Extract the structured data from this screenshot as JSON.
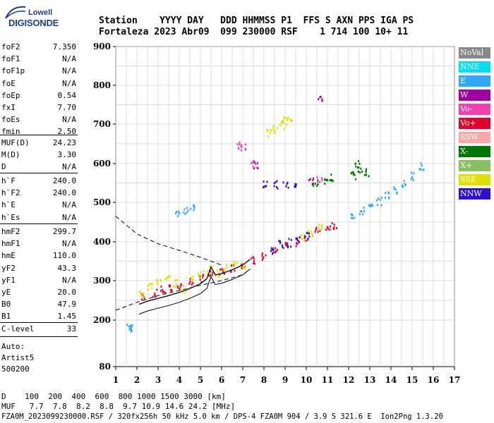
{
  "logo": {
    "line1": "Lowell",
    "line2": "DIGISONDE"
  },
  "header": {
    "row1": "Station    YYYY DAY   DDD HHMMSS P1  FFS S AXN PPS IGA PS",
    "row2": "Fortaleza 2023 Abr09  099 230000 RSF    1 714 100 10+ 11"
  },
  "params": {
    "group1": [
      [
        "foF2",
        "7.350"
      ],
      [
        "foF1",
        "N/A"
      ],
      [
        "foF1p",
        "N/A"
      ],
      [
        "foE",
        "N/A"
      ],
      [
        "foEp",
        "0.54"
      ],
      [
        "fxI",
        "7.70"
      ],
      [
        "foEs",
        "N/A"
      ],
      [
        "fmin",
        "2.50"
      ]
    ],
    "group2": [
      [
        "MUF(D)",
        "24.23"
      ],
      [
        "M(D)",
        "3.30"
      ],
      [
        "D",
        "N/A"
      ]
    ],
    "group3": [
      [
        "h`F",
        "240.0"
      ],
      [
        "h`F2",
        "240.0"
      ],
      [
        "h`E",
        "N/A"
      ],
      [
        "h`Es",
        "N/A"
      ]
    ],
    "group4": [
      [
        "hmF2",
        "299.7"
      ],
      [
        "hmF1",
        "N/A"
      ],
      [
        "hmE",
        "110.0"
      ],
      [
        "yF2",
        "43.3"
      ],
      [
        "yF1",
        "N/A"
      ],
      [
        "yE",
        "20.0"
      ],
      [
        "B0",
        "47.9"
      ],
      [
        "B1",
        "1.45"
      ]
    ],
    "clevel": [
      "C-level",
      "33"
    ]
  },
  "autoscale": {
    "line1": "Auto:",
    "line2": "Artist5",
    "line3": "500200"
  },
  "legend": [
    {
      "label": "NoVal",
      "color": "#888888"
    },
    {
      "label": "NNE",
      "color": "#00e0f0"
    },
    {
      "label": "E",
      "color": "#30a8f8"
    },
    {
      "label": "W",
      "color": "#a000a0"
    },
    {
      "label": "Vo-",
      "color": "#f040b0"
    },
    {
      "label": "Vo+",
      "color": "#e00030"
    },
    {
      "label": "SSW",
      "color": "#f8a8a8"
    },
    {
      "label": "X-",
      "color": "#007800"
    },
    {
      "label": "X+",
      "color": "#88c060"
    },
    {
      "label": "SSE",
      "color": "#e0e000"
    },
    {
      "label": "NNW",
      "color": "#3010d0"
    }
  ],
  "chart_data": {
    "type": "scatter",
    "x_ticks": [
      "1",
      "2",
      "3",
      "4",
      "5",
      "6",
      "7",
      "8",
      "9",
      "10",
      "11",
      "12",
      "13",
      "14",
      "15",
      "16",
      "17"
    ],
    "y_ticks": [
      "80",
      "200",
      "300",
      "400",
      "500",
      "600",
      "700",
      "800",
      "900"
    ],
    "xlim": [
      1,
      17
    ],
    "ylim": [
      80,
      900
    ],
    "grid": true,
    "legend_position": "right",
    "profile_x": [
      2.1,
      2.5,
      3.0,
      3.5,
      4.0,
      4.5,
      5.0,
      5.3,
      5.5,
      5.7,
      6.0,
      6.5,
      7.0,
      7.35
    ],
    "profile_y": [
      240,
      248,
      255,
      262,
      270,
      280,
      292,
      305,
      335,
      315,
      318,
      328,
      340,
      355
    ],
    "echoes": [
      {
        "mode": "Vo+",
        "points": [
          [
            2.3,
            260
          ],
          [
            2.8,
            270
          ],
          [
            3.2,
            278
          ],
          [
            3.6,
            282
          ],
          [
            4.0,
            290
          ],
          [
            4.5,
            300
          ],
          [
            5.0,
            308
          ],
          [
            5.5,
            318
          ],
          [
            6.0,
            325
          ],
          [
            6.5,
            335
          ],
          [
            7.0,
            345
          ],
          [
            7.5,
            355
          ],
          [
            8.0,
            365
          ],
          [
            8.5,
            378
          ],
          [
            9.0,
            390
          ],
          [
            9.5,
            400
          ],
          [
            10.0,
            415
          ],
          [
            10.5,
            430
          ],
          [
            11.0,
            440
          ],
          [
            11.3,
            445
          ]
        ]
      },
      {
        "mode": "SSE",
        "points": [
          [
            2.2,
            270
          ],
          [
            2.6,
            285
          ],
          [
            3.0,
            300
          ],
          [
            3.4,
            310
          ],
          [
            3.8,
            295
          ],
          [
            4.2,
            280
          ],
          [
            4.6,
            310
          ],
          [
            5.0,
            320
          ],
          [
            5.4,
            330
          ],
          [
            5.8,
            320
          ],
          [
            6.2,
            335
          ],
          [
            6.6,
            345
          ],
          [
            7.0,
            340
          ],
          [
            9.8,
            415
          ],
          [
            10.2,
            425
          ],
          [
            10.6,
            440
          ]
        ]
      },
      {
        "mode": "NNW",
        "points": [
          [
            8.4,
            380
          ],
          [
            8.8,
            395
          ],
          [
            9.2,
            400
          ],
          [
            9.6,
            410
          ],
          [
            10.0,
            420
          ],
          [
            8.0,
            548
          ],
          [
            8.5,
            548
          ],
          [
            9.0,
            548
          ],
          [
            9.5,
            550
          ]
        ]
      },
      {
        "mode": "E",
        "points": [
          [
            12.2,
            470
          ],
          [
            12.6,
            480
          ],
          [
            13.0,
            490
          ],
          [
            13.4,
            505
          ],
          [
            13.8,
            520
          ],
          [
            14.2,
            535
          ],
          [
            14.6,
            550
          ],
          [
            15.0,
            570
          ],
          [
            15.4,
            595
          ],
          [
            3.9,
            470
          ],
          [
            4.3,
            480
          ],
          [
            4.6,
            490
          ],
          [
            1.6,
            185
          ],
          [
            1.7,
            180
          ]
        ]
      },
      {
        "mode": "X-",
        "points": [
          [
            10.4,
            555
          ],
          [
            10.9,
            560
          ],
          [
            11.2,
            565
          ],
          [
            12.2,
            570
          ],
          [
            12.5,
            585
          ],
          [
            12.8,
            580
          ],
          [
            12.4,
            600
          ]
        ]
      },
      {
        "mode": "SSE",
        "points": [
          [
            8.2,
            680
          ],
          [
            8.5,
            690
          ],
          [
            8.8,
            700
          ],
          [
            9.0,
            710
          ],
          [
            9.2,
            720
          ]
        ]
      },
      {
        "mode": "W",
        "points": [
          [
            10.6,
            765
          ],
          [
            7.6,
            600
          ],
          [
            10.2,
            555
          ]
        ]
      },
      {
        "mode": "Vo-",
        "points": [
          [
            6.8,
            650
          ],
          [
            7.0,
            645
          ],
          [
            7.5,
            600
          ],
          [
            10.6,
            560
          ]
        ]
      }
    ]
  },
  "bottom": {
    "line1": "D    100  200  400  600  800 1000 1500 3000 [km]",
    "line2": "MUF   7.7  7.8  8.2  8.8  9.7 10.9 14.6 24.2 [MHz]",
    "line3": "FZA0M_2023099230000.RSF / 320fx256h 50 kHz 5.0 km / DPS-4 FZA0M 904 / 3.9 S 321.6 E  Ion2Png 1.3.20"
  }
}
